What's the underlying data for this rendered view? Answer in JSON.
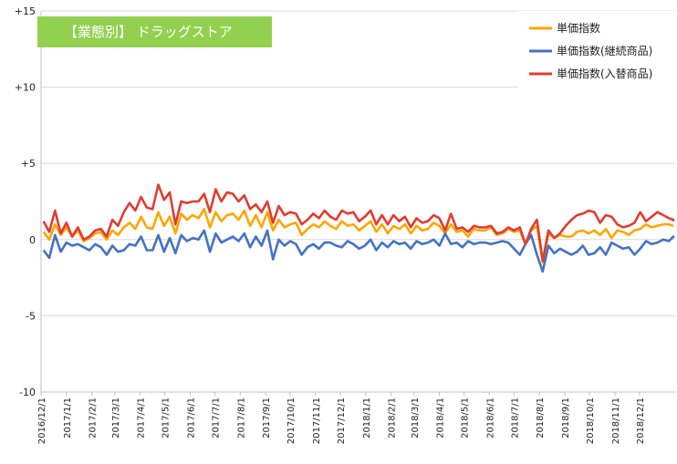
{
  "chart_data": {
    "type": "line",
    "title": "【業態別】 ドラッグストア",
    "title_bg_color": "#92D050",
    "ylim": [
      -10,
      15
    ],
    "yticks": [
      {
        "value": 15,
        "label": "+15"
      },
      {
        "value": 10,
        "label": "+10"
      },
      {
        "value": 5,
        "label": "+5"
      },
      {
        "value": 0,
        "label": "0"
      },
      {
        "value": -5,
        "label": "-5"
      },
      {
        "value": -10,
        "label": "-10"
      }
    ],
    "grid": "horizontal",
    "legend_position": "top-right",
    "x_ticks": [
      "2016/12/1",
      "2017/1/1",
      "2017/2/1",
      "2017/3/1",
      "2017/4/1",
      "2017/5/1",
      "2017/6/1",
      "2017/7/1",
      "2017/8/1",
      "2017/9/1",
      "2017/10/1",
      "2017/11/1",
      "2017/12/1",
      "2018/1/1",
      "2018/2/1",
      "2018/3/1",
      "2018/4/1",
      "2018/5/1",
      "2018/6/1",
      "2018/7/1",
      "2018/8/1",
      "2018/9/1",
      "2018/10/1",
      "2018/11/1",
      "2018/12/1"
    ],
    "x_start": "2016/12/4",
    "x_interval_days": 7,
    "series": [
      {
        "name": "単価指数",
        "color": "#FFA500",
        "values": [
          0.5,
          0.0,
          1.0,
          0.3,
          0.8,
          0.2,
          0.6,
          -0.1,
          0.1,
          0.4,
          0.5,
          0.0,
          0.6,
          0.3,
          0.8,
          1.1,
          0.7,
          1.5,
          0.8,
          0.7,
          1.8,
          0.9,
          1.5,
          0.4,
          1.7,
          1.3,
          1.6,
          1.4,
          2.0,
          0.8,
          1.8,
          1.2,
          1.6,
          1.7,
          1.3,
          1.9,
          0.9,
          1.6,
          0.8,
          1.8,
          0.6,
          1.3,
          0.8,
          1.0,
          1.1,
          0.3,
          0.7,
          1.0,
          0.8,
          1.2,
          0.9,
          0.7,
          1.2,
          0.9,
          1.0,
          0.6,
          0.9,
          1.2,
          0.5,
          1.0,
          0.4,
          0.9,
          0.7,
          1.0,
          0.4,
          0.9,
          0.6,
          0.7,
          1.1,
          0.9,
          0.4,
          1.0,
          0.5,
          0.6,
          0.2,
          0.7,
          0.6,
          0.6,
          0.8,
          0.3,
          0.4,
          0.7,
          0.5,
          0.6,
          -0.3,
          0.6,
          0.9,
          -1.5,
          0.4,
          0.1,
          0.3,
          0.2,
          0.2,
          0.5,
          0.6,
          0.4,
          0.6,
          0.3,
          0.7,
          0.1,
          0.6,
          0.5,
          0.3,
          0.6,
          0.7,
          1.0,
          0.8,
          0.9,
          1.0,
          1.0,
          0.9,
          0.9
        ]
      },
      {
        "name": "単価指数(継続商品)",
        "color": "#4472C4",
        "values": [
          -0.7,
          -1.2,
          0.3,
          -0.8,
          -0.2,
          -0.4,
          -0.3,
          -0.5,
          -0.7,
          -0.3,
          -0.5,
          -1.0,
          -0.4,
          -0.8,
          -0.7,
          -0.3,
          -0.4,
          0.2,
          -0.7,
          -0.7,
          0.3,
          -0.8,
          0.1,
          -0.9,
          0.3,
          -0.1,
          0.1,
          0.0,
          0.6,
          -0.8,
          0.4,
          -0.2,
          0.0,
          0.2,
          -0.1,
          0.4,
          -0.5,
          0.2,
          -0.4,
          0.6,
          -1.3,
          0.0,
          -0.4,
          -0.1,
          -0.3,
          -1.0,
          -0.5,
          -0.3,
          -0.6,
          -0.2,
          -0.2,
          -0.4,
          -0.5,
          -0.1,
          -0.3,
          -0.6,
          -0.4,
          0.0,
          -0.7,
          -0.2,
          -0.5,
          -0.1,
          -0.3,
          -0.2,
          -0.6,
          -0.1,
          -0.3,
          -0.2,
          0.0,
          -0.4,
          0.4,
          -0.3,
          -0.2,
          -0.5,
          -0.1,
          -0.3,
          -0.2,
          -0.2,
          -0.3,
          -0.2,
          -0.1,
          -0.2,
          -0.6,
          -1.0,
          -0.3,
          0.3,
          -1.0,
          -2.1,
          -0.4,
          -0.9,
          -0.6,
          -0.8,
          -1.0,
          -0.8,
          -0.4,
          -1.0,
          -0.9,
          -0.5,
          -1.0,
          -0.2,
          -0.4,
          -0.6,
          -0.5,
          -1.0,
          -0.6,
          -0.1,
          -0.3,
          -0.2,
          0.0,
          -0.1,
          0.2,
          0.1
        ]
      },
      {
        "name": "単価指数(入替商品)",
        "color": "#E03C31",
        "values": [
          1.2,
          0.5,
          1.9,
          0.4,
          1.1,
          0.2,
          0.8,
          0.0,
          0.2,
          0.6,
          0.7,
          0.2,
          1.3,
          0.9,
          1.8,
          2.4,
          1.9,
          2.8,
          2.1,
          2.0,
          3.6,
          2.6,
          3.1,
          1.0,
          2.5,
          2.4,
          2.5,
          2.5,
          3.0,
          1.8,
          3.3,
          2.5,
          3.1,
          3.0,
          2.5,
          2.9,
          2.0,
          2.3,
          1.8,
          2.5,
          1.1,
          2.2,
          1.6,
          1.8,
          1.7,
          1.0,
          1.3,
          1.7,
          1.4,
          1.9,
          1.5,
          1.3,
          1.9,
          1.7,
          1.8,
          1.2,
          1.5,
          1.9,
          1.0,
          1.6,
          1.0,
          1.6,
          1.2,
          1.5,
          0.8,
          1.4,
          1.1,
          1.2,
          1.6,
          1.4,
          0.6,
          1.7,
          0.7,
          0.8,
          0.5,
          0.9,
          0.8,
          0.8,
          0.9,
          0.4,
          0.5,
          0.8,
          0.6,
          0.8,
          -0.3,
          0.7,
          1.3,
          -1.4,
          0.6,
          0.1,
          0.4,
          0.9,
          1.3,
          1.6,
          1.7,
          1.9,
          1.8,
          1.1,
          1.6,
          1.5,
          1.0,
          0.8,
          0.9,
          1.1,
          1.8,
          1.2,
          1.5,
          1.8,
          1.6,
          1.4,
          1.3,
          1.2
        ]
      }
    ]
  }
}
